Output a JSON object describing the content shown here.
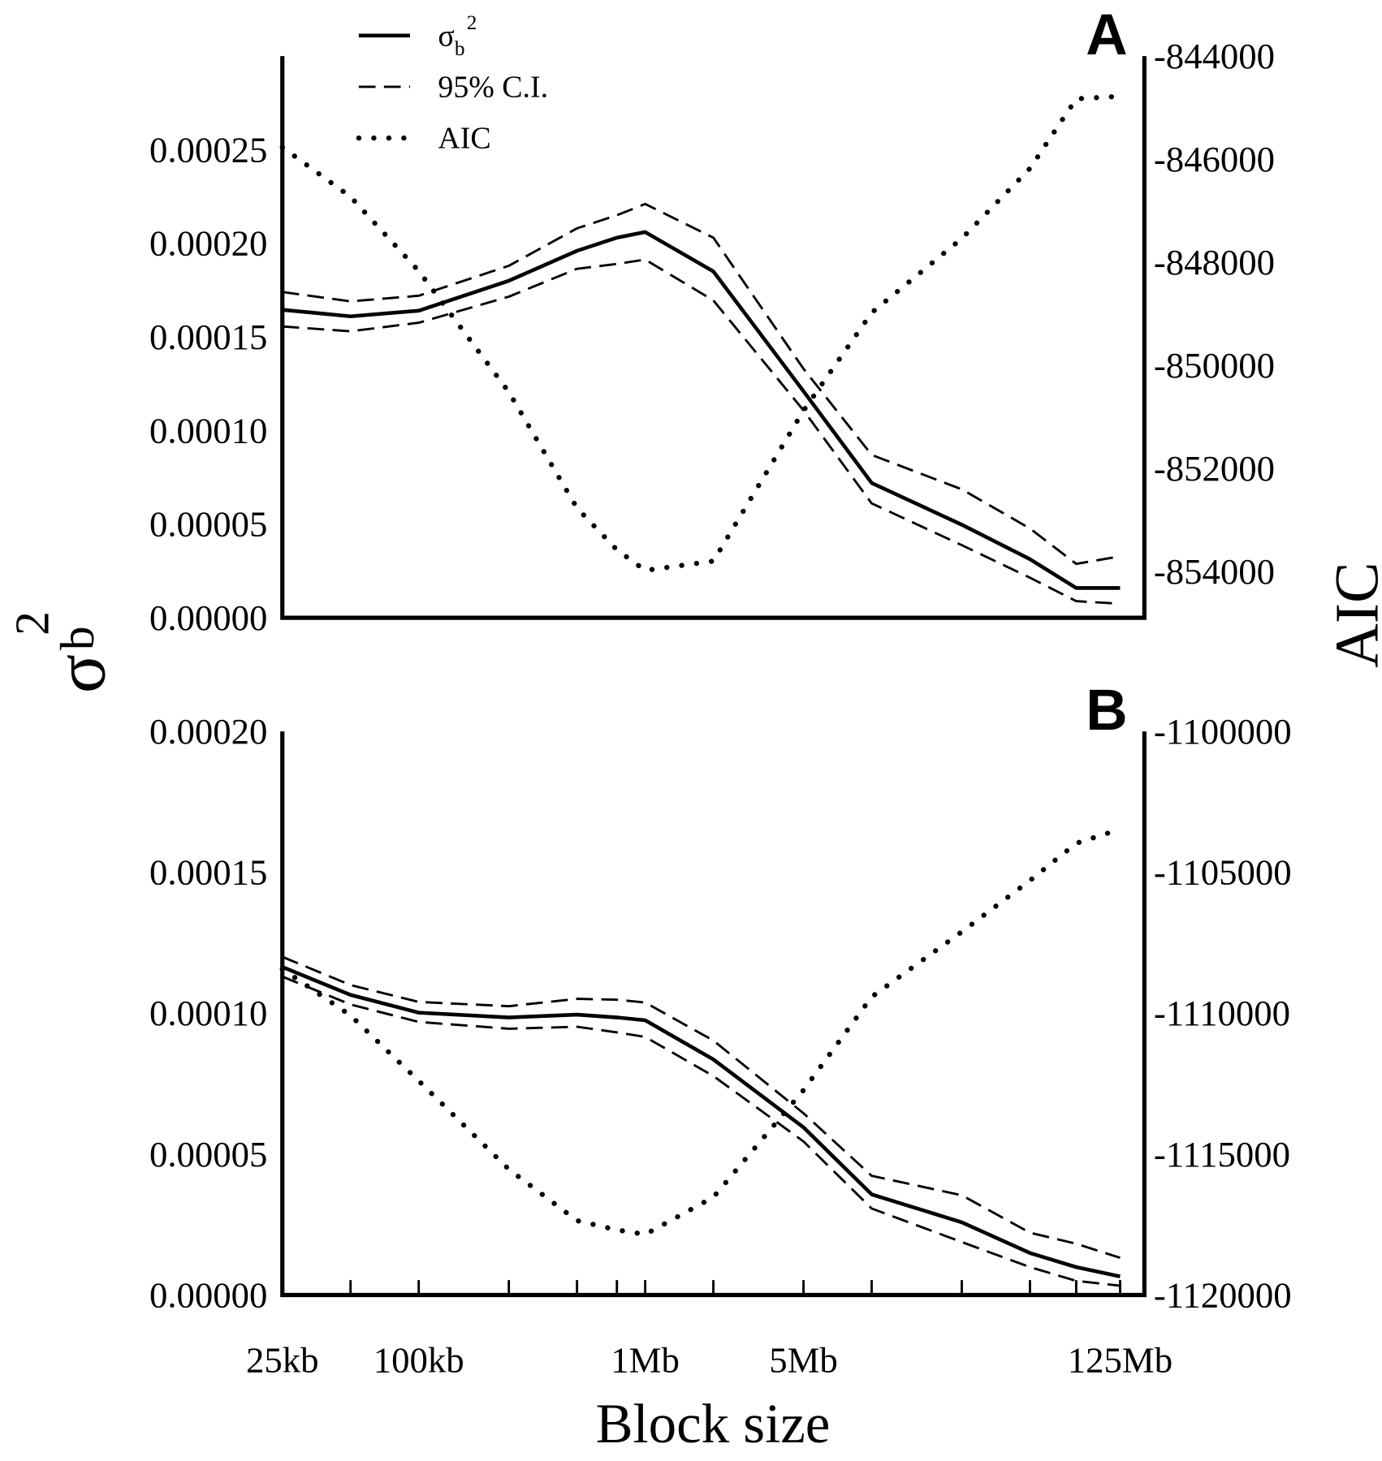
{
  "labels": {
    "y_symbol": "σ",
    "y_sub": "b",
    "y_sup": "2",
    "y2": "AIC",
    "x": "Block size"
  },
  "chart_data": [
    {
      "type": "line",
      "panel_label": "A",
      "log_x": true,
      "xlim": [
        25,
        160000
      ],
      "x": [
        25,
        50,
        100,
        250,
        500,
        750,
        1000,
        2000,
        5000,
        10000,
        25000,
        50000,
        80000,
        125000
      ],
      "ylim": [
        0,
        0.0003
      ],
      "yticks": [
        {
          "value": 0,
          "label": "0.00000"
        },
        {
          "value": 5e-05,
          "label": "0.00005"
        },
        {
          "value": 0.0001,
          "label": "0.00010"
        },
        {
          "value": 0.00015,
          "label": "0.00015"
        },
        {
          "value": 0.0002,
          "label": "0.00020"
        },
        {
          "value": 0.00025,
          "label": "0.00025"
        }
      ],
      "y2lim": [
        -854900,
        -844000
      ],
      "y2ticks": [
        -854000,
        -852000,
        -850000,
        -848000,
        -846000,
        -844000
      ],
      "legend": "top-left",
      "series": [
        {
          "name": "σ",
          "name_sub": "b",
          "name_sup": "2",
          "color": "#000000",
          "style": "solid",
          "values": [
            0.0001645,
            0.000161,
            0.000164,
            0.00018,
            0.000196,
            0.000203,
            0.000206,
            0.000185,
            0.000121,
            7.2e-05,
            4.97e-05,
            3.13e-05,
            1.59e-05,
            1.59e-05
          ]
        },
        {
          "name": "95% C.I.",
          "color": "#000000",
          "style": "dashed",
          "values": [
            0.000174,
            0.000169,
            0.000172,
            0.000188,
            0.000208,
            0.000215,
            0.000221,
            0.000203,
            0.000133,
            8.7e-05,
            6.86e-05,
            4.77e-05,
            2.88e-05,
            3.28e-05
          ]
        },
        {
          "color": "#000000",
          "style": "dashed",
          "values": [
            0.0001556,
            0.000153,
            0.0001576,
            0.0001715,
            0.0001864,
            0.000189,
            0.0001913,
            0.0001695,
            0.0001108,
            6.11e-05,
            3.88e-05,
            2.14e-05,
            8.9e-06,
            7.5e-06
          ]
        },
        {
          "name": "AIC",
          "color": "#000000",
          "style": "dotted",
          "axis": "y2",
          "values": [
            -845770,
            -846730,
            -848170,
            -850520,
            -852770,
            -853580,
            -853980,
            -853800,
            -850880,
            -848980,
            -847540,
            -846180,
            -844830,
            -844780
          ]
        }
      ]
    },
    {
      "type": "line",
      "panel_label": "B",
      "log_x": true,
      "xlim": [
        25,
        160000
      ],
      "x": [
        25,
        50,
        100,
        250,
        500,
        750,
        1000,
        2000,
        5000,
        10000,
        25000,
        50000,
        80000,
        125000
      ],
      "xticks": [
        {
          "value": 25,
          "label": "25kb"
        },
        {
          "value": 100,
          "label": "100kb"
        },
        {
          "value": 1000,
          "label": "1Mb"
        },
        {
          "value": 5000,
          "label": "5Mb"
        },
        {
          "value": 125000,
          "label": "125Mb"
        }
      ],
      "minor_xticks": [
        50,
        250,
        500,
        750,
        2000,
        10000,
        25000,
        50000,
        80000
      ],
      "ylim": [
        0,
        0.0002
      ],
      "yticks": [
        {
          "value": 0,
          "label": "0.00000"
        },
        {
          "value": 5e-05,
          "label": "0.00005"
        },
        {
          "value": 0.0001,
          "label": "0.00010"
        },
        {
          "value": 0.00015,
          "label": "0.00015"
        },
        {
          "value": 0.0002,
          "label": "0.00020"
        }
      ],
      "y2lim": [
        -1120000,
        -1100000
      ],
      "y2ticks": [
        -1120000,
        -1115000,
        -1110000,
        -1105000,
        -1100000
      ],
      "series": [
        {
          "color": "#000000",
          "style": "solid",
          "values": [
            0.0001164,
            0.0001065,
            0.0001002,
            9.85e-05,
            9.95e-05,
            9.85e-05,
            9.75e-05,
            8.36e-05,
            5.95e-05,
            3.57e-05,
            2.58e-05,
            1.49e-05,
            9.9e-06,
            6.6e-06
          ]
        },
        {
          "color": "#000000",
          "style": "dashed",
          "values": [
            0.00012,
            0.00011,
            0.000104,
            0.0001025,
            0.0001051,
            0.0001048,
            0.0001038,
            9.03e-05,
            6.45e-05,
            4.23e-05,
            3.54e-05,
            2.21e-05,
            1.82e-05,
            1.32e-05
          ]
        },
        {
          "color": "#000000",
          "style": "dashed",
          "values": [
            0.000113,
            0.0001031,
            9.69e-05,
            9.45e-05,
            9.52e-05,
            9.32e-05,
            9.16e-05,
            7.77e-05,
            5.45e-05,
            3.07e-05,
            1.88e-05,
            9.9e-06,
            5e-06,
            3.3e-06
          ]
        },
        {
          "color": "#000000",
          "style": "dotted",
          "axis": "y2",
          "values": [
            -1108430,
            -1110080,
            -1112400,
            -1115540,
            -1117360,
            -1117690,
            -1117850,
            -1116530,
            -1112730,
            -1109420,
            -1107110,
            -1105290,
            -1103970,
            -1103470
          ]
        }
      ]
    }
  ]
}
